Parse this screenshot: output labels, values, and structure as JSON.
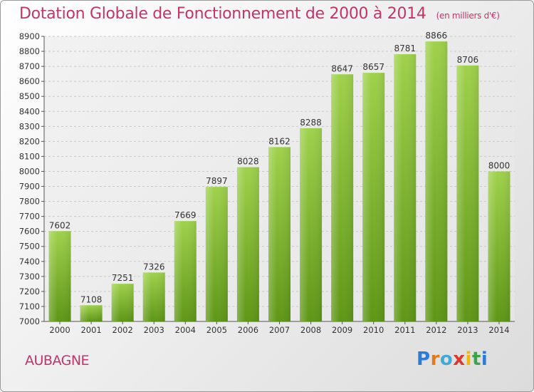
{
  "title": "Dotation Globale de Fonctionnement de 2000 à 2014",
  "subtitle": "(en milliers d'€)",
  "town": "AUBAGNE",
  "brand": {
    "letters": [
      "P",
      "r",
      "o",
      "x",
      "i",
      "t",
      "i"
    ],
    "colors": [
      "#2e7bd6",
      "#e07b1e",
      "#3fa9d8",
      "#d93a2b",
      "#f2b705",
      "#3fa34d",
      "#2e7bd6"
    ]
  },
  "colors": {
    "bar_top": "#9fd14b",
    "bar_bottom": "#5e9616",
    "title": "#c0356a"
  },
  "chart_data": {
    "type": "bar",
    "title": "Dotation Globale de Fonctionnement de 2000 à 2014",
    "categories": [
      "2000",
      "2001",
      "2002",
      "2003",
      "2004",
      "2005",
      "2006",
      "2007",
      "2008",
      "2009",
      "2010",
      "2011",
      "2012",
      "2013",
      "2014"
    ],
    "values": [
      7602,
      7108,
      7251,
      7326,
      7669,
      7897,
      8028,
      8162,
      8288,
      8647,
      8657,
      8781,
      8866,
      8706,
      8000
    ],
    "ylim": [
      7000,
      8900
    ],
    "yticks": [
      7000,
      7100,
      7200,
      7300,
      7400,
      7500,
      7600,
      7700,
      7800,
      7900,
      8000,
      8100,
      8200,
      8300,
      8400,
      8500,
      8600,
      8700,
      8800,
      8900
    ],
    "grid": true,
    "xlabel": "",
    "ylabel": ""
  }
}
